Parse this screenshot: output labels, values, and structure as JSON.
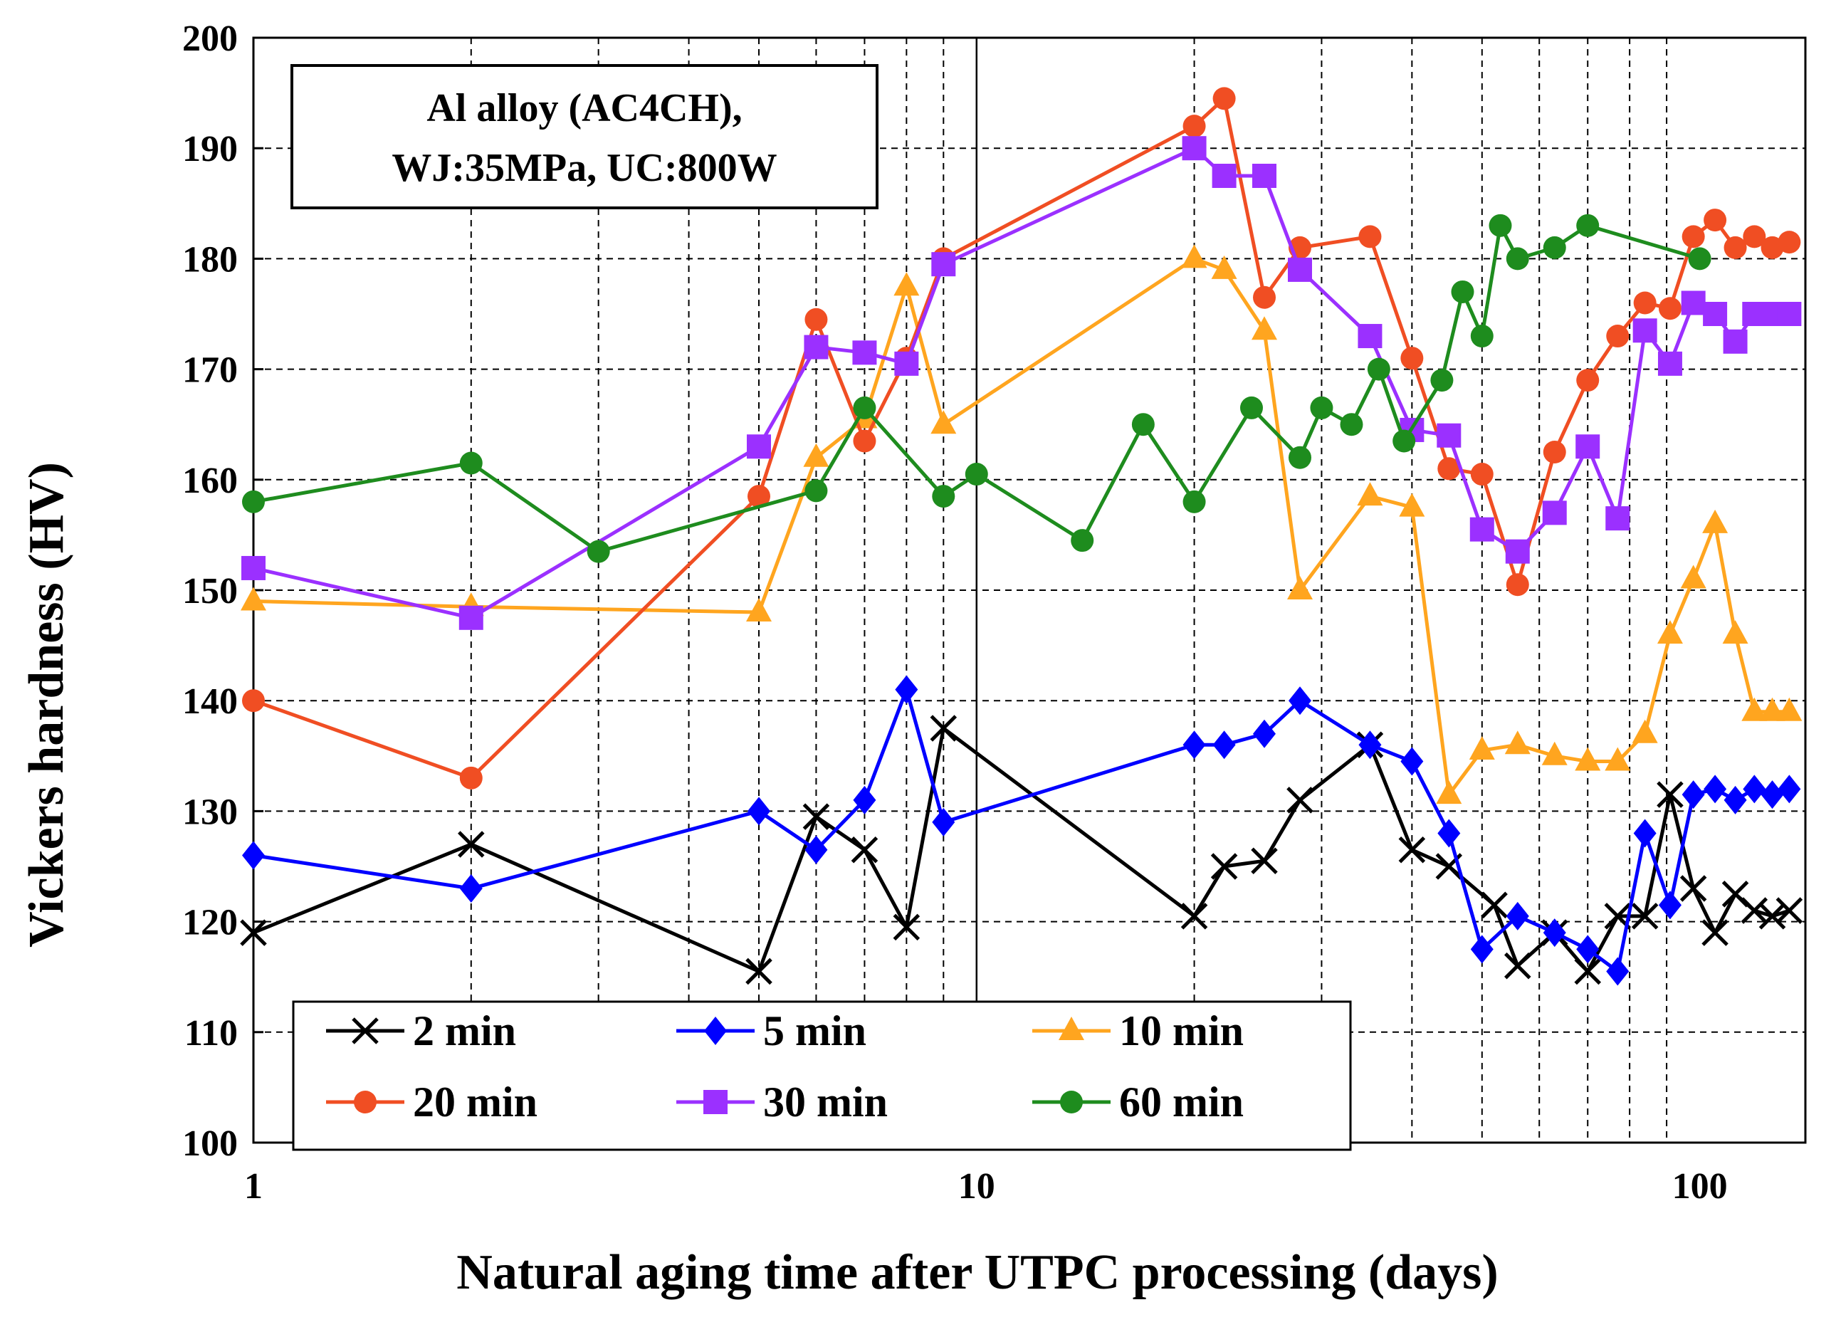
{
  "chart_data": {
    "type": "line",
    "title": "",
    "xlabel": "Natural aging time after UTPC processing (days)",
    "ylabel": "Vickers hardness (HV)",
    "xscale": "log",
    "xlim": [
      1,
      140
    ],
    "ylim": [
      100,
      200
    ],
    "xticks": [
      1,
      10,
      100
    ],
    "xtick_labels": [
      "1",
      "10",
      "100"
    ],
    "yticks": [
      100,
      110,
      120,
      130,
      140,
      150,
      160,
      170,
      180,
      190,
      200
    ],
    "ytick_labels": [
      "100",
      "110",
      "120",
      "130",
      "140",
      "150",
      "160",
      "170",
      "180",
      "190",
      "200"
    ],
    "grid": true,
    "annotation": {
      "lines": [
        "Al alloy (AC4CH),",
        "WJ:35MPa, UC:800W"
      ]
    },
    "legend_position": "bottom-center",
    "series": [
      {
        "name": "2 min",
        "color": "#000000",
        "marker": "x",
        "x": [
          1,
          2,
          5,
          6,
          7,
          8,
          9,
          20,
          22,
          25,
          28,
          35,
          40,
          45,
          52,
          56,
          63,
          70,
          77,
          84,
          91,
          98,
          105,
          112,
          119,
          126,
          133
        ],
        "y": [
          119,
          127,
          115.5,
          129.5,
          126.5,
          119.5,
          137.5,
          120.5,
          125,
          125.5,
          131,
          136,
          126.5,
          125,
          121.5,
          116,
          119,
          115.5,
          120.5,
          120.5,
          131.5,
          123,
          119,
          122.5,
          121,
          120.5,
          121
        ]
      },
      {
        "name": "5 min",
        "color": "#0000FF",
        "marker": "diamond",
        "x": [
          1,
          2,
          5,
          6,
          7,
          8,
          9,
          20,
          22,
          25,
          28,
          35,
          40,
          45,
          50,
          56,
          63,
          70,
          77,
          84,
          91,
          98,
          105,
          112,
          119,
          126,
          133
        ],
        "y": [
          126,
          123,
          130,
          126.5,
          131,
          141,
          129,
          136,
          136,
          137,
          140,
          136,
          134.5,
          128,
          117.5,
          120.5,
          119,
          117.5,
          115.5,
          128,
          121.5,
          131.5,
          132,
          131,
          132,
          131.5,
          132
        ]
      },
      {
        "name": "10 min",
        "color": "#FFA51F",
        "marker": "triangle",
        "x": [
          1,
          2,
          5,
          6,
          7,
          8,
          9,
          20,
          22,
          25,
          28,
          35,
          40,
          45,
          50,
          56,
          63,
          70,
          77,
          84,
          91,
          98,
          105,
          112,
          119,
          126,
          133
        ],
        "y": [
          149,
          148.5,
          148,
          162,
          165.5,
          177.5,
          165,
          180,
          179,
          173.5,
          150,
          158.5,
          157.5,
          131.5,
          135.5,
          136,
          135,
          134.5,
          134.5,
          137,
          146,
          151,
          156,
          146,
          139,
          139,
          139
        ]
      },
      {
        "name": "20 min",
        "color": "#F04E23",
        "marker": "circle",
        "x": [
          1,
          2,
          5,
          6,
          7,
          8,
          9,
          20,
          22,
          25,
          28,
          35,
          40,
          45,
          50,
          56,
          63,
          70,
          77,
          84,
          91,
          98,
          105,
          112,
          119,
          126,
          133
        ],
        "y": [
          140,
          133,
          158.5,
          174.5,
          163.5,
          171,
          180,
          192,
          194.5,
          176.5,
          181,
          182,
          171,
          161,
          160.5,
          150.5,
          162.5,
          169,
          173,
          176,
          175.5,
          182,
          183.5,
          181,
          182,
          181,
          181.5
        ]
      },
      {
        "name": "30 min",
        "color": "#9B30FF",
        "marker": "square",
        "x": [
          1,
          2,
          5,
          6,
          7,
          8,
          9,
          20,
          22,
          25,
          28,
          35,
          40,
          45,
          50,
          56,
          63,
          70,
          77,
          84,
          91,
          98,
          105,
          112,
          119,
          126,
          133
        ],
        "y": [
          152,
          147.5,
          163,
          172,
          171.5,
          170.5,
          179.5,
          190,
          187.5,
          187.5,
          179,
          173,
          164.5,
          164,
          155.5,
          153.5,
          157,
          163,
          156.5,
          173.5,
          170.5,
          176,
          175,
          172.5,
          175,
          175,
          175
        ]
      },
      {
        "name": "60 min",
        "color": "#1E8C1E",
        "marker": "circle",
        "x": [
          1,
          2,
          3,
          6,
          7,
          9,
          10,
          14,
          17,
          20,
          24,
          28,
          30,
          33,
          36,
          39,
          44,
          47,
          50,
          53,
          56,
          63,
          70,
          100
        ],
        "y": [
          158,
          161.5,
          153.5,
          159,
          166.5,
          158.5,
          160.5,
          154.5,
          165,
          158,
          166.5,
          162,
          166.5,
          165,
          170,
          163.5,
          169,
          177,
          173,
          183,
          180,
          181,
          183,
          180
        ]
      }
    ]
  }
}
